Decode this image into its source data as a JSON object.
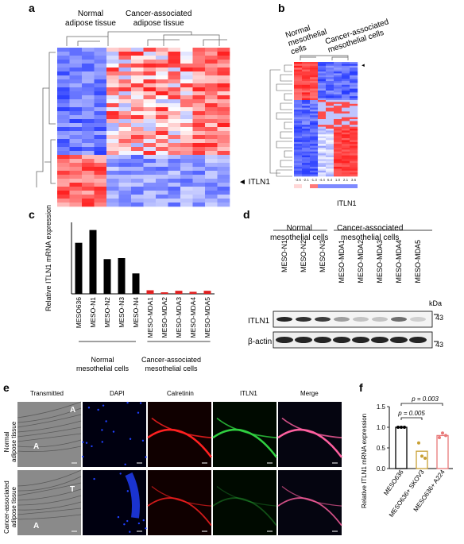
{
  "panels": {
    "a": {
      "label": "a",
      "group_normal": "Normal\nadipose tissue",
      "group_cancer": "Cancer-associated\nadipose tissue",
      "gene_marker": "◄ ITLN1"
    },
    "b": {
      "label": "b",
      "group_normal": "Normal\nmesothelial\ncells",
      "group_cancer": "Cancer-associated\nmesothelial cells",
      "scale_values": [
        "-3.6",
        "-2.1",
        "-1.3",
        "-4.4",
        "6.4",
        "1.0",
        "2.1",
        "3.6"
      ],
      "gene_label": "ITLN1"
    },
    "c": {
      "label": "c",
      "chart_data": {
        "type": "bar",
        "ylabel": "Relative ITLN1 mRNA expression",
        "categories": [
          "MESO636",
          "MESO-N1",
          "MESO-N2",
          "MESO-N3",
          "MESO-N4",
          "MESO-MDA1",
          "MESO-MDA2",
          "MESO-MDA3",
          "MESO-MDA4",
          "MESO-MDA5"
        ],
        "values": [
          1.0,
          1.25,
          0.68,
          0.7,
          0.4,
          0.07,
          0.03,
          0.06,
          0.04,
          0.06
        ],
        "ylim": [
          0,
          1.4
        ],
        "group_labels": [
          "Normal\nmesothelial cells",
          "Cancer-associated\nmesothelial cells"
        ],
        "colors": {
          "normal": "#000000",
          "cancer": "#e02020"
        }
      }
    },
    "d": {
      "label": "d",
      "group_normal": "Normal\nmesothelial cells",
      "group_cancer": "Cancer-associated\nmesothelial cells",
      "lanes": [
        "MESO-N1",
        "MESO-N2",
        "MESO-N3",
        "MESO-MDA1",
        "MESO-MDA2",
        "MESO-MDA3",
        "MESO-MDA4",
        "MESO-MDA5"
      ],
      "kda_unit": "kDa",
      "marker_top": "43",
      "marker_bottom": "43",
      "row1": "ITLN1",
      "row2": "β-actin"
    },
    "e": {
      "label": "e",
      "columns": [
        "Transmitted",
        "DAPI",
        "Calretinin",
        "ITLN1",
        "Merge"
      ],
      "rows": [
        "Normal\nadipose tissue",
        "Cancer-associated\nadipose tissue"
      ],
      "mark_A": "A",
      "mark_T": "T"
    },
    "f": {
      "label": "f",
      "chart_data": {
        "type": "bar",
        "ylabel": "Relative ITLN1 mRNA expression",
        "categories": [
          "MESO636",
          "MESO636+ SKOV3",
          "MESO636+ A224"
        ],
        "values": [
          1.0,
          0.42,
          0.8
        ],
        "points": [
          [
            1.0,
            1.0,
            1.0
          ],
          [
            0.62,
            0.3,
            0.25
          ],
          [
            0.75,
            0.86,
            0.8
          ]
        ],
        "ylim": [
          0,
          1.5
        ],
        "yticks": [
          "0.0",
          "0.5",
          "1.0",
          "1.5"
        ],
        "pvalues": [
          "p = 0.005",
          "p = 0.003"
        ],
        "colors": [
          "#000000",
          "#c8a035",
          "#e87878"
        ]
      }
    }
  }
}
